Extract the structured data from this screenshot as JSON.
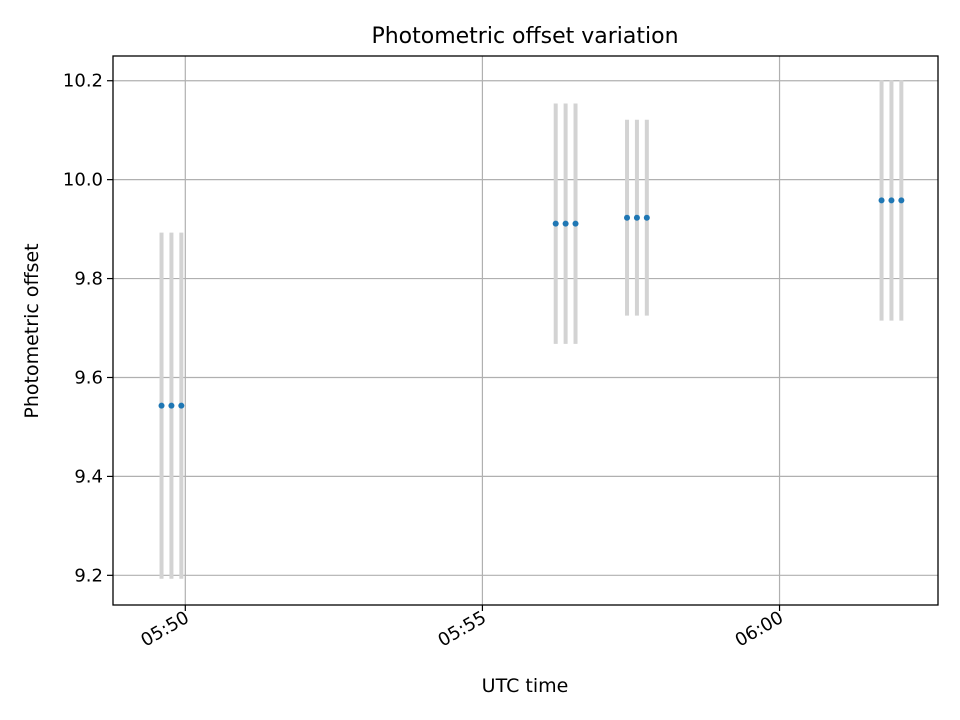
{
  "chart_data": {
    "type": "scatter",
    "title": "Photometric offset variation",
    "xlabel": "UTC time",
    "ylabel": "Photometric offset",
    "x_axis_type": "time",
    "xlim": [
      "05:48:47",
      "06:02:40"
    ],
    "ylim": [
      9.14,
      10.25
    ],
    "xticks": [
      "05:50",
      "05:55",
      "06:00"
    ],
    "yticks": [
      "9.2",
      "9.4",
      "9.6",
      "9.8",
      "10.0",
      "10.2"
    ],
    "grid": true,
    "legend": false,
    "colors": {
      "points": "#1f77b4",
      "errorbars": "#d3d3d3",
      "grid": "#b0b0b0",
      "axes": "#000000"
    },
    "series": [
      {
        "points": [
          {
            "x": "05:49:36",
            "y": 9.543,
            "yerr": 0.35
          },
          {
            "x": "05:49:46",
            "y": 9.543,
            "yerr": 0.35
          },
          {
            "x": "05:49:56",
            "y": 9.543,
            "yerr": 0.35
          },
          {
            "x": "05:56:14",
            "y": 9.911,
            "yerr": 0.243
          },
          {
            "x": "05:56:24",
            "y": 9.911,
            "yerr": 0.243
          },
          {
            "x": "05:56:34",
            "y": 9.911,
            "yerr": 0.243
          },
          {
            "x": "05:57:26",
            "y": 9.923,
            "yerr": 0.198
          },
          {
            "x": "05:57:36",
            "y": 9.923,
            "yerr": 0.198
          },
          {
            "x": "05:57:46",
            "y": 9.923,
            "yerr": 0.198
          },
          {
            "x": "06:01:43",
            "y": 9.958,
            "yerr": 0.243
          },
          {
            "x": "06:01:53",
            "y": 9.958,
            "yerr": 0.243
          },
          {
            "x": "06:02:03",
            "y": 9.958,
            "yerr": 0.243
          }
        ]
      }
    ]
  }
}
